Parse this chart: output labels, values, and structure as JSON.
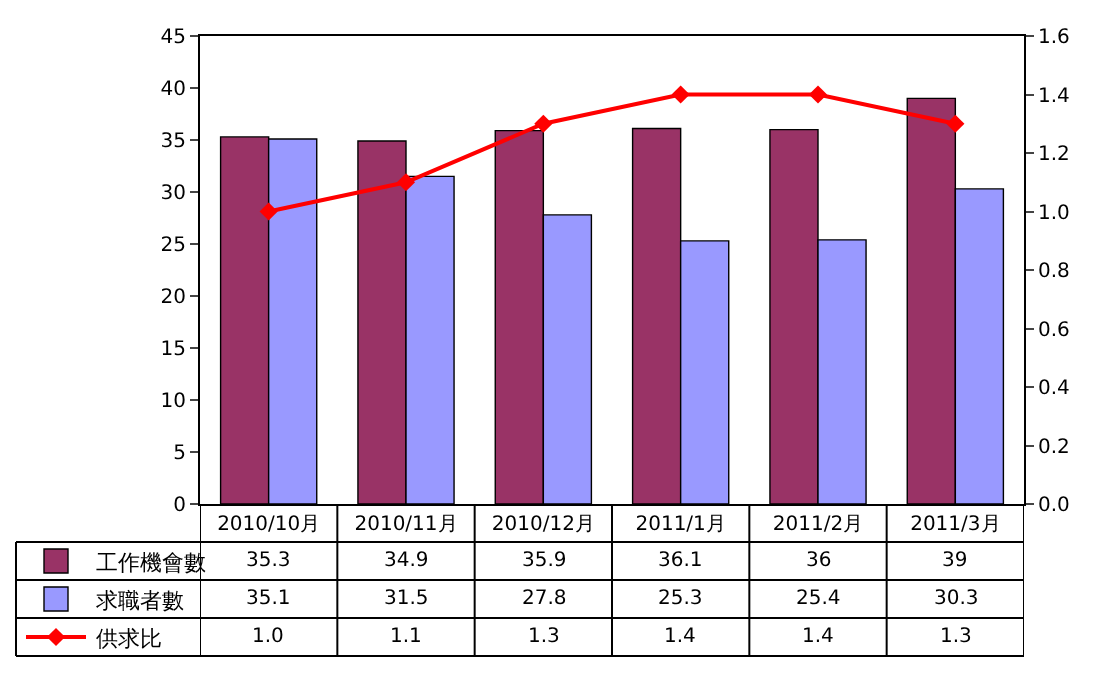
{
  "chart_data": {
    "type": "bar",
    "categories": [
      "2010/10月",
      "2010/11月",
      "2010/12月",
      "2011/1月",
      "2011/2月",
      "2011/3月"
    ],
    "series": [
      {
        "name": "工作機會數",
        "color": "#993366",
        "values": [
          35.3,
          34.9,
          35.9,
          36.1,
          36,
          39
        ],
        "value_labels": [
          "35.3",
          "34.9",
          "35.9",
          "36.1",
          "36",
          "39"
        ]
      },
      {
        "name": "求職者數",
        "color": "#9999ff",
        "values": [
          35.1,
          31.5,
          27.8,
          25.3,
          25.4,
          30.3
        ],
        "value_labels": [
          "35.1",
          "31.5",
          "27.8",
          "25.3",
          "25.4",
          "30.3"
        ]
      },
      {
        "name": "供求比",
        "color": "#ff0000",
        "type": "line",
        "axis": "y2",
        "marker": "diamond",
        "values": [
          1.0,
          1.1,
          1.3,
          1.4,
          1.4,
          1.3
        ],
        "value_labels": [
          "1.0",
          "1.1",
          "1.3",
          "1.4",
          "1.4",
          "1.3"
        ]
      }
    ],
    "ylim": [
      0,
      45
    ],
    "yticks": [
      0,
      5,
      10,
      15,
      20,
      25,
      30,
      35,
      40,
      45
    ],
    "y2lim": [
      0,
      1.6
    ],
    "y2ticks": [
      {
        "value": 0,
        "label": "0.0"
      },
      {
        "value": 0.2,
        "label": "0.2"
      },
      {
        "value": 0.4,
        "label": "0.4"
      },
      {
        "value": 0.6,
        "label": "0.6"
      },
      {
        "value": 0.8,
        "label": "0.8"
      },
      {
        "value": 1.0,
        "label": "1.0"
      },
      {
        "value": 1.2,
        "label": "1.2"
      },
      {
        "value": 1.4,
        "label": "1.4"
      },
      {
        "value": 1.6,
        "label": "1.6"
      }
    ],
    "grid": false,
    "legend": "bottom left"
  }
}
